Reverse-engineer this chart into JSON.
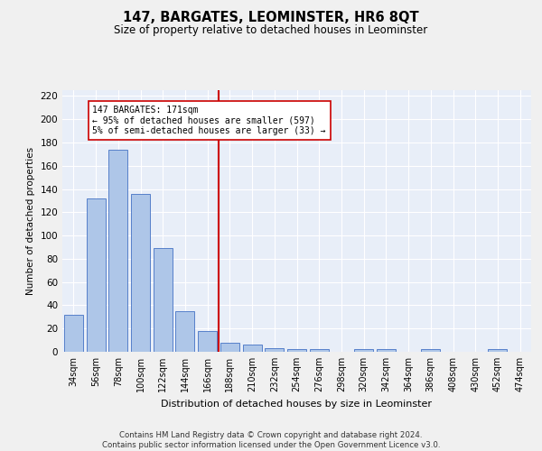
{
  "title": "147, BARGATES, LEOMINSTER, HR6 8QT",
  "subtitle": "Size of property relative to detached houses in Leominster",
  "xlabel": "Distribution of detached houses by size in Leominster",
  "ylabel": "Number of detached properties",
  "categories": [
    "34sqm",
    "56sqm",
    "78sqm",
    "100sqm",
    "122sqm",
    "144sqm",
    "166sqm",
    "188sqm",
    "210sqm",
    "232sqm",
    "254sqm",
    "276sqm",
    "298sqm",
    "320sqm",
    "342sqm",
    "364sqm",
    "386sqm",
    "408sqm",
    "430sqm",
    "452sqm",
    "474sqm"
  ],
  "bar_heights": [
    32,
    132,
    174,
    136,
    89,
    35,
    18,
    8,
    6,
    3,
    2,
    2,
    0,
    2,
    2,
    0,
    2,
    0,
    0,
    2,
    0
  ],
  "vline_x": 6.5,
  "annotation_line1": "147 BARGATES: 171sqm",
  "annotation_line2": "← 95% of detached houses are smaller (597)",
  "annotation_line3": "5% of semi-detached houses are larger (33) →",
  "bar_color": "#aec6e8",
  "bar_edge_color": "#4472c4",
  "vline_color": "#cc0000",
  "annotation_box_color": "#ffffff",
  "annotation_box_edge": "#cc0000",
  "bg_color": "#e8eef8",
  "grid_color": "#ffffff",
  "ylim": [
    0,
    225
  ],
  "yticks": [
    0,
    20,
    40,
    60,
    80,
    100,
    120,
    140,
    160,
    180,
    200,
    220
  ],
  "footnote": "Contains HM Land Registry data © Crown copyright and database right 2024.\nContains public sector information licensed under the Open Government Licence v3.0."
}
